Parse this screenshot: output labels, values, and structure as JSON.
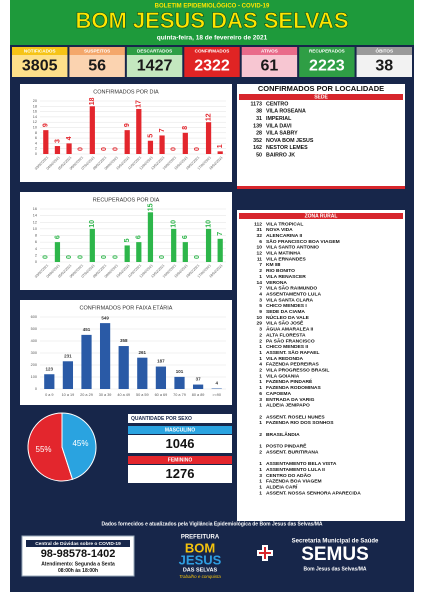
{
  "header": {
    "subtitle": "BOLETIM EPIDEMIOLÓGICO - COVID-19",
    "title": "BOM JESUS DAS SELVAS",
    "date": "quinta-feira, 18 de fevereiro de 2021"
  },
  "stats": [
    {
      "label": "NOTIFICADOS",
      "value": 3805
    },
    {
      "label": "SUSPEITOS",
      "value": 56
    },
    {
      "label": "DESCARTADOS",
      "value": 1427
    },
    {
      "label": "CONFIRMADOS",
      "value": 2322
    },
    {
      "label": "ATIVOS",
      "value": 61
    },
    {
      "label": "RECUPERADOS",
      "value": 2223
    },
    {
      "label": "ÓBITOS",
      "value": 38
    }
  ],
  "chart_data": [
    {
      "type": "bar",
      "title": "CONFIRMADOS POR DIA",
      "categories": [
        "03/02/2021",
        "04/02/2021",
        "05/02/2021",
        "06/02/2021",
        "07/02/2021",
        "08/02/2021",
        "09/02/2021",
        "10/02/2021",
        "11/02/2021",
        "12/02/2021",
        "13/02/2021",
        "14/02/2021",
        "15/02/2021",
        "16/02/2021",
        "17/02/2021",
        "18/02/2021"
      ],
      "values": [
        9,
        3,
        4,
        0,
        18,
        0,
        0,
        9,
        17,
        5,
        7,
        0,
        8,
        0,
        12,
        1
      ],
      "color": "#e3262d",
      "ylim": [
        0,
        20
      ],
      "yticks": [
        0,
        2,
        4,
        6,
        8,
        10,
        12,
        14,
        16,
        18,
        20
      ],
      "grid": true
    },
    {
      "type": "bar",
      "title": "RECUPERADOS POR DIA",
      "categories": [
        "03/02/2021",
        "04/02/2021",
        "05/02/2021",
        "06/02/2021",
        "07/02/2021",
        "08/02/2021",
        "09/02/2021",
        "10/02/2021",
        "11/02/2021",
        "12/02/2021",
        "13/02/2021",
        "14/02/2021",
        "15/02/2021",
        "16/02/2021",
        "17/02/2021",
        "18/02/2021"
      ],
      "values": [
        0,
        6,
        0,
        0,
        10,
        0,
        0,
        5,
        6,
        15,
        0,
        10,
        6,
        0,
        10,
        7
      ],
      "color": "#2db64a",
      "ylim": [
        0,
        16
      ],
      "yticks": [
        0,
        2,
        4,
        6,
        8,
        10,
        12,
        14,
        16
      ],
      "grid": true
    },
    {
      "type": "bar",
      "title": "CONFIRMADOS POR FAIXA ETÁRIA",
      "categories": [
        "0 a 9",
        "10 a 19",
        "20 a 29",
        "30 a 39",
        "40 a 49",
        "50 a 59",
        "60 a 69",
        "70 a 79",
        "80 a 89",
        ">=90"
      ],
      "values": [
        123,
        231,
        451,
        549,
        358,
        261,
        187,
        101,
        37,
        4
      ],
      "color": "#2a5aa6",
      "ylim": [
        0,
        600
      ],
      "yticks": [
        0,
        100,
        200,
        300,
        400,
        500,
        600
      ],
      "grid": true
    },
    {
      "type": "pie",
      "values": [
        55,
        45
      ],
      "value_labels": [
        "55%",
        "45%"
      ],
      "colors": [
        "#e3262d",
        "#2aa3e0"
      ]
    }
  ],
  "sexo": {
    "title": "QUANTIDADE POR SEXO",
    "items": [
      {
        "label": "MASCULINO",
        "value": 1046,
        "color": "#2aa3e0"
      },
      {
        "label": "FEMININO",
        "value": 1276,
        "color": "#e3262d"
      }
    ]
  },
  "localidade": {
    "title": "CONFIRMADOS POR LOCALIDADE",
    "sede": {
      "label": "SEDE",
      "items": [
        {
          "count": 1173,
          "name": "CENTRO"
        },
        {
          "count": 38,
          "name": "VILA ROSEANA"
        },
        {
          "count": 31,
          "name": "IMPERIAL"
        },
        {
          "count": 139,
          "name": "VILA DAVI"
        },
        {
          "count": 28,
          "name": "VILA SABRY"
        },
        {
          "count": 352,
          "name": "NOVA BOM JESUS"
        },
        {
          "count": 162,
          "name": "NESTOR LEMES"
        },
        {
          "count": 50,
          "name": "BAIRRO JK"
        }
      ]
    },
    "rural": {
      "label": "ZONA RURAL",
      "groups": [
        [
          {
            "count": 112,
            "name": "VILA TROPICAL"
          },
          {
            "count": 31,
            "name": "NOVA VIDA"
          },
          {
            "count": 32,
            "name": "ALENCARINA II"
          },
          {
            "count": 6,
            "name": "SÃO FRANCISCO BOA VIAGEM"
          },
          {
            "count": 10,
            "name": "VILA SANTO ANTONIO"
          },
          {
            "count": 12,
            "name": "VILA MATINHA"
          },
          {
            "count": 11,
            "name": "VILA ERNANDES"
          },
          {
            "count": 7,
            "name": "KM 88"
          },
          {
            "count": 2,
            "name": "RIO BONITO"
          },
          {
            "count": 1,
            "name": "VILA RENASCER"
          },
          {
            "count": 14,
            "name": "VERONA"
          },
          {
            "count": 7,
            "name": "VILA SÃO RAIMUNDO"
          },
          {
            "count": 4,
            "name": "ASSENTAMENTO LULA"
          },
          {
            "count": 3,
            "name": "VILA SANTA CLARA"
          },
          {
            "count": 5,
            "name": "CHICO MENDES I"
          },
          {
            "count": 9,
            "name": "SEDE DA CIAMA"
          },
          {
            "count": 10,
            "name": "NÚCLEO DA VALE"
          },
          {
            "count": 29,
            "name": "VILA SÃO JOSÉ"
          },
          {
            "count": 3,
            "name": "ÁGUA AMARALEA II"
          },
          {
            "count": 2,
            "name": "ALTA FLORESTA"
          },
          {
            "count": 2,
            "name": "PA SÃO FRANCISCO"
          },
          {
            "count": 1,
            "name": "CHICO MENDES II"
          },
          {
            "count": 1,
            "name": "ASSENT. SÃO RAFAEL"
          },
          {
            "count": 1,
            "name": "VILA REDONDA"
          },
          {
            "count": 4,
            "name": "FAZENDA PEDREIRAS"
          },
          {
            "count": 2,
            "name": "VILA PROGRESSO BRASIL"
          },
          {
            "count": 1,
            "name": "VILA GOIANIA"
          },
          {
            "count": 1,
            "name": "FAZENDA PINDARÉ"
          },
          {
            "count": 1,
            "name": "FAZENDA RODOMINAS"
          },
          {
            "count": 6,
            "name": "CAPOEMA"
          },
          {
            "count": 3,
            "name": "ENTRADA DA VARIG"
          },
          {
            "count": 1,
            "name": "ALDEIA JENIPAPO"
          }
        ],
        [
          {
            "count": 2,
            "name": "ASSENT. ROSELI NUNES"
          },
          {
            "count": 1,
            "name": "FAZENDA RIO DOS SONHOS"
          }
        ],
        [
          {
            "count": 2,
            "name": "BRASILÂNDIA"
          }
        ],
        [
          {
            "count": 1,
            "name": "POSTO PINDARÉ"
          },
          {
            "count": 2,
            "name": "ASSENT. BURITIRANA"
          }
        ],
        [
          {
            "count": 1,
            "name": "ASSENTAMENTO BELA VISTA"
          },
          {
            "count": 1,
            "name": "ASSENTAMENTO LULA II"
          },
          {
            "count": 3,
            "name": "CENTRO DO ADÃO"
          },
          {
            "count": 1,
            "name": "FAZENDA BOA VIAGEM"
          },
          {
            "count": 1,
            "name": "ALDEIA CARÍ"
          },
          {
            "count": 1,
            "name": "ASSENT. NOSSA SENHORA APARECIDA"
          }
        ]
      ]
    }
  },
  "footer": {
    "source": "Dados fornecidos e atualizados pela Vigilância Epidemiológica de Bom Jesus das Selvas/MA",
    "contact": {
      "title": "Central de Dúvidas sobre o COVID-19",
      "phone": "98-98578-1402",
      "hours1": "Atendimento: Segunda a Sexta",
      "hours2": "08:00h às 18:00h"
    },
    "prefeitura": {
      "top": "PREFEITURA",
      "name1": "BOM",
      "name2": "JESUS",
      "name3": "DAS SELVAS",
      "slogan": "Trabalho e conquista"
    },
    "semus": {
      "line1": "Secretaria Municipal de Saúde",
      "name": "SEMUS",
      "line2": "Bom Jesus das Selvas/MA"
    }
  }
}
